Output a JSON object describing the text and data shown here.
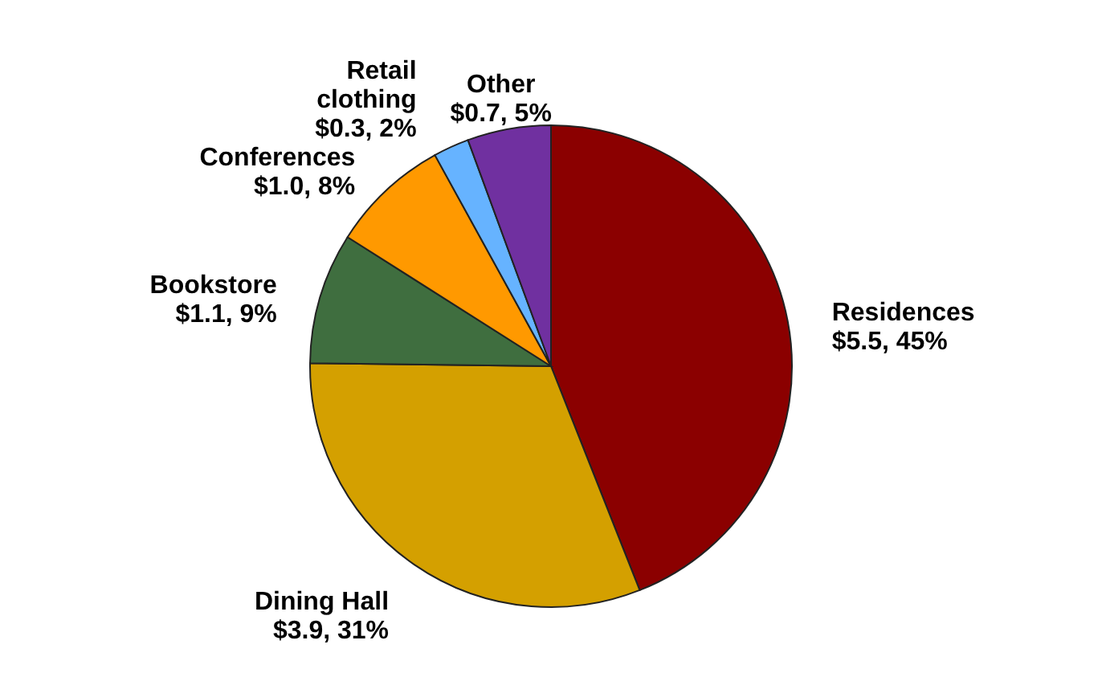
{
  "chart_data": {
    "type": "pie",
    "categories": [
      "Residences",
      "Dining Hall",
      "Bookstore",
      "Conferences",
      "Retail clothing",
      "Other"
    ],
    "values": [
      5.5,
      3.9,
      1.1,
      1.0,
      0.3,
      0.7
    ],
    "value_labels": [
      "$5.5, 45%",
      "$3.9, 31%",
      "$1.1, 9%",
      "$1.0, 8%",
      "$0.3, 2%",
      "$0.7, 5%"
    ],
    "colors": [
      "#8b0000",
      "#d4a000",
      "#3f6e3f",
      "#ff9900",
      "#66b3ff",
      "#7030a0"
    ]
  }
}
